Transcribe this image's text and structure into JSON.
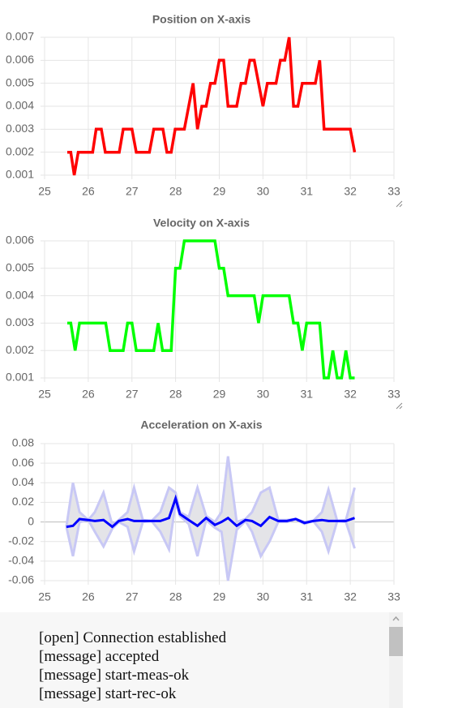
{
  "chart_data": [
    {
      "type": "line",
      "title": "Position on X-axis",
      "x": [
        25.52,
        25.6,
        25.68,
        25.77,
        26.1,
        26.18,
        26.3,
        26.39,
        26.71,
        26.8,
        27.0,
        27.1,
        27.4,
        27.5,
        27.71,
        27.8,
        27.9,
        27.99,
        28.2,
        28.4,
        28.5,
        28.6,
        28.7,
        28.8,
        28.9,
        29.0,
        29.1,
        29.2,
        29.4,
        29.5,
        29.6,
        29.7,
        29.8,
        30.0,
        30.1,
        30.3,
        30.4,
        30.5,
        30.6,
        30.7,
        30.8,
        30.9,
        31.2,
        31.3,
        31.4,
        32.0,
        32.1
      ],
      "series": [
        {
          "color": "#ff0000",
          "values": [
            0.002,
            0.002,
            0.001,
            0.002,
            0.002,
            0.003,
            0.003,
            0.002,
            0.002,
            0.003,
            0.003,
            0.002,
            0.002,
            0.003,
            0.003,
            0.002,
            0.002,
            0.003,
            0.003,
            0.005,
            0.003,
            0.004,
            0.004,
            0.005,
            0.005,
            0.006,
            0.006,
            0.004,
            0.004,
            0.005,
            0.005,
            0.006,
            0.006,
            0.004,
            0.005,
            0.005,
            0.006,
            0.006,
            0.007,
            0.004,
            0.004,
            0.005,
            0.005,
            0.006,
            0.003,
            0.003,
            0.002
          ]
        }
      ],
      "xlim": [
        25,
        33
      ],
      "xticks": [
        25,
        26,
        27,
        28,
        29,
        30,
        31,
        32,
        33
      ],
      "ylim": [
        0.001,
        0.007
      ],
      "yticks": [
        0.001,
        0.002,
        0.003,
        0.004,
        0.005,
        0.006,
        0.007
      ],
      "grid": true
    },
    {
      "type": "line",
      "title": "Velocity on X-axis",
      "x": [
        25.52,
        25.6,
        25.7,
        25.8,
        26.4,
        26.5,
        26.8,
        26.9,
        27.0,
        27.1,
        27.5,
        27.6,
        27.7,
        27.9,
        28.0,
        28.1,
        28.2,
        28.9,
        29.0,
        29.1,
        29.2,
        29.8,
        29.9,
        30.0,
        30.6,
        30.7,
        30.8,
        30.9,
        31.0,
        31.3,
        31.4,
        31.5,
        31.6,
        31.7,
        31.8,
        31.9,
        32.0,
        32.1
      ],
      "series": [
        {
          "color": "#00ff00",
          "values": [
            0.003,
            0.003,
            0.002,
            0.003,
            0.003,
            0.002,
            0.002,
            0.003,
            0.003,
            0.002,
            0.002,
            0.003,
            0.002,
            0.002,
            0.005,
            0.005,
            0.006,
            0.006,
            0.005,
            0.005,
            0.004,
            0.004,
            0.003,
            0.004,
            0.004,
            0.003,
            0.003,
            0.002,
            0.003,
            0.003,
            0.001,
            0.001,
            0.002,
            0.001,
            0.001,
            0.002,
            0.001,
            0.001
          ]
        }
      ],
      "xlim": [
        25,
        33
      ],
      "xticks": [
        25,
        26,
        27,
        28,
        29,
        30,
        31,
        32,
        33
      ],
      "ylim": [
        0.001,
        0.006
      ],
      "yticks": [
        0.001,
        0.002,
        0.003,
        0.004,
        0.005,
        0.006
      ],
      "grid": true
    },
    {
      "type": "band-line",
      "title": "Acceleration on X-axis",
      "x": [
        25.5,
        25.65,
        25.8,
        26.0,
        26.15,
        26.35,
        26.55,
        26.7,
        26.9,
        27.05,
        27.25,
        27.45,
        27.65,
        27.85,
        28.0,
        28.1,
        28.3,
        28.5,
        28.7,
        28.9,
        29.05,
        29.2,
        29.4,
        29.6,
        29.75,
        29.95,
        30.15,
        30.35,
        30.55,
        30.75,
        30.95,
        31.15,
        31.35,
        31.5,
        31.7,
        31.9,
        32.1
      ],
      "series": [
        {
          "color": "#0000ff",
          "values": [
            -0.005,
            -0.004,
            0.003,
            0.002,
            0.001,
            0.002,
            -0.005,
            0.001,
            0.003,
            0.001,
            0.001,
            0.001,
            0.001,
            0.004,
            0.024,
            0.008,
            0.002,
            -0.004,
            0.004,
            -0.003,
            0.0,
            0.004,
            -0.004,
            0.002,
            0.001,
            -0.004,
            0.005,
            0.001,
            0.001,
            0.003,
            -0.001,
            0.001,
            0.002,
            0.001,
            0.001,
            0.001,
            0.004
          ]
        }
      ],
      "band": {
        "color": "#c8c8f5",
        "fill": "#e4e4e8",
        "upper": [
          -0.005,
          0.04,
          0.01,
          0.002,
          0.01,
          0.03,
          -0.003,
          0.002,
          0.01,
          0.035,
          0.002,
          0.001,
          0.01,
          0.035,
          0.03,
          0.01,
          0.005,
          0.035,
          0.006,
          0.0,
          0.01,
          0.067,
          0.0,
          0.003,
          0.01,
          0.03,
          0.035,
          0.002,
          0.002,
          0.003,
          0.0,
          0.001,
          0.01,
          0.033,
          0.001,
          0.002,
          0.035
        ],
        "lower": [
          -0.005,
          -0.035,
          0.0,
          0.002,
          -0.01,
          -0.025,
          -0.007,
          0.0,
          -0.005,
          -0.03,
          0.0,
          0.001,
          -0.01,
          -0.028,
          0.02,
          0.006,
          -0.002,
          -0.035,
          0.002,
          -0.006,
          -0.01,
          -0.06,
          -0.008,
          0.001,
          -0.01,
          -0.035,
          -0.02,
          0.0,
          0.0,
          0.003,
          -0.002,
          0.001,
          -0.01,
          -0.03,
          0.001,
          0.0,
          -0.027
        ]
      },
      "xlim": [
        25,
        33
      ],
      "xticks": [
        25,
        26,
        27,
        28,
        29,
        30,
        31,
        32,
        33
      ],
      "ylim": [
        -0.06,
        0.08
      ],
      "yticks": [
        -0.06,
        -0.04,
        -0.02,
        0,
        0.02,
        0.04,
        0.06,
        0.08
      ],
      "grid": true
    }
  ],
  "log": {
    "lines": [
      "[open] Connection established",
      "[message] accepted",
      "[message] start-meas-ok",
      "[message] start-rec-ok"
    ]
  }
}
